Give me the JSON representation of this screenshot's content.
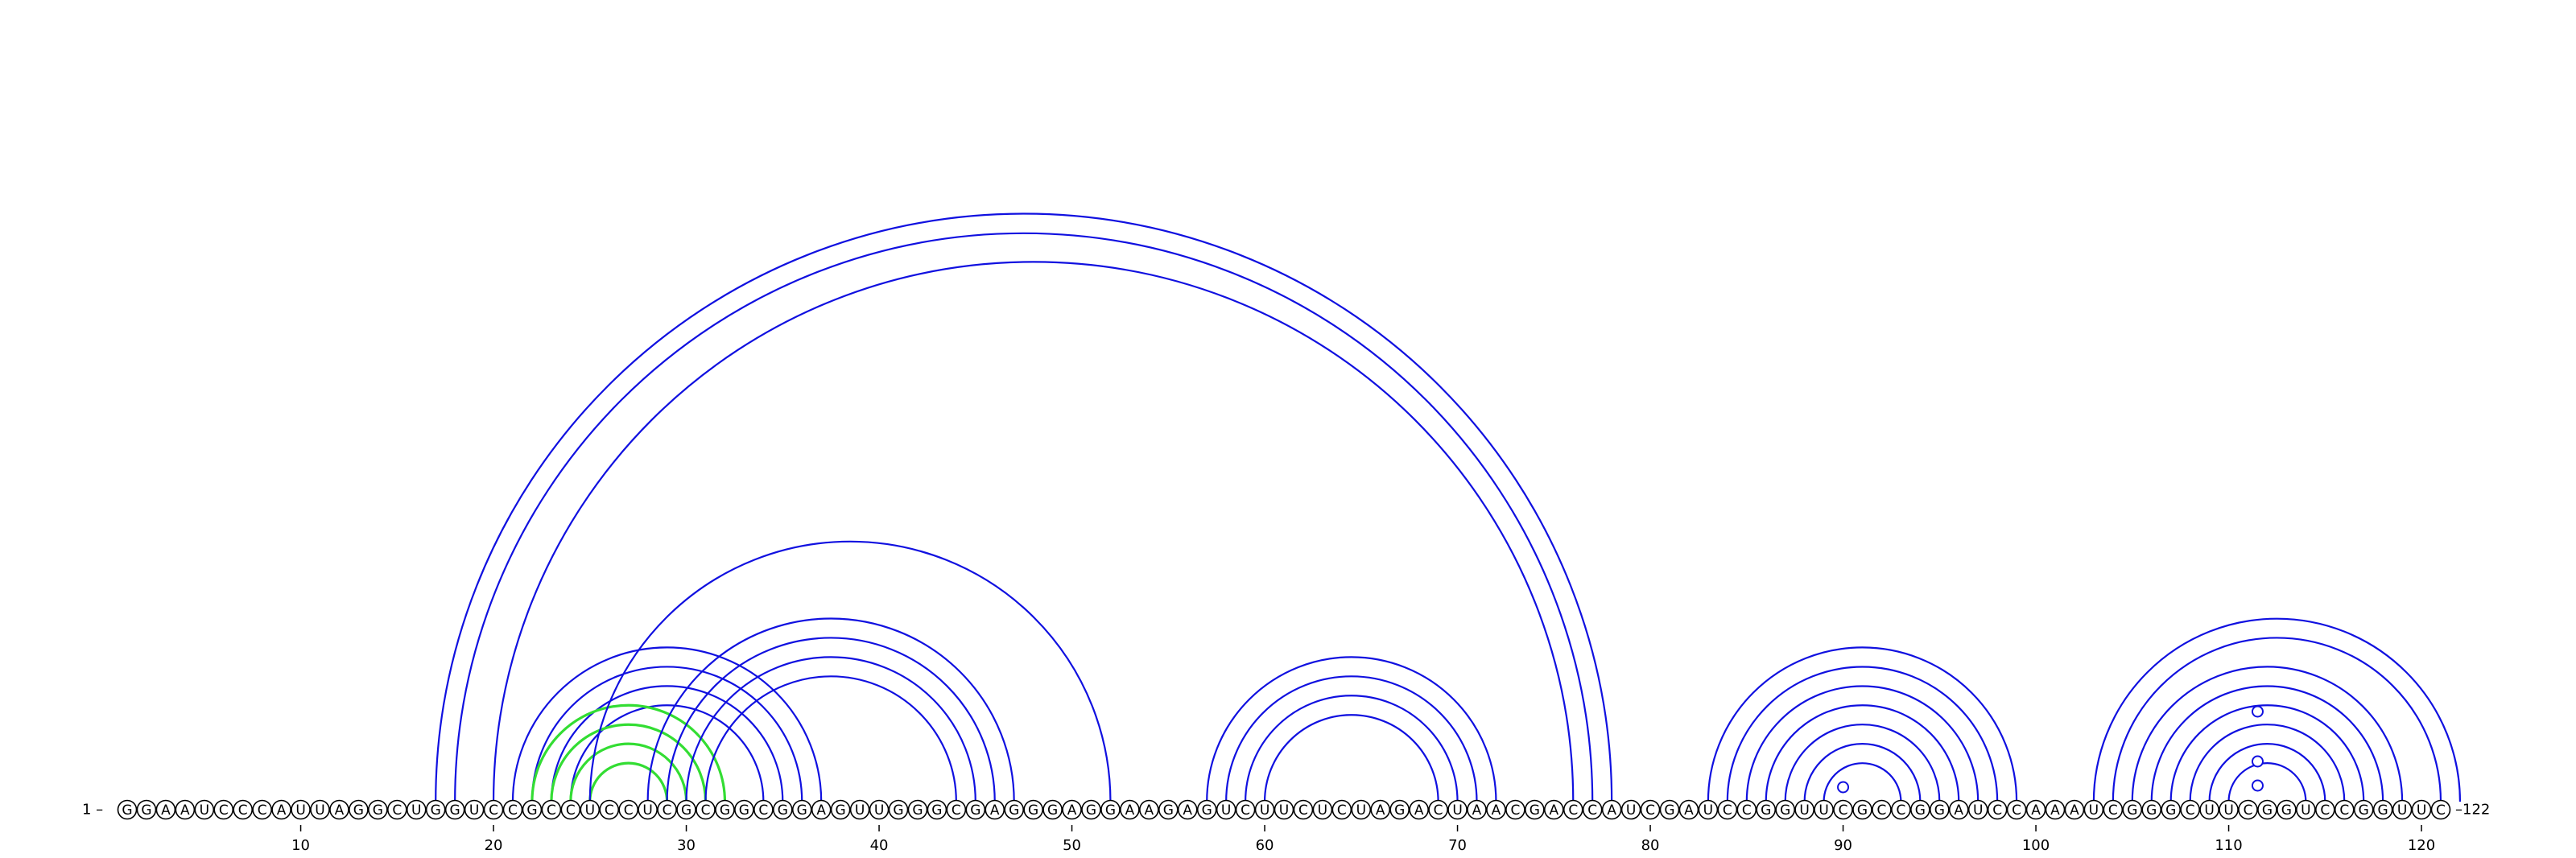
{
  "sequence": "GGAAUCCCAUUAGGCUGGUCCGCCUCCUCGCGGCGGAGUUGGGCGAGGGAGGAAGAGUCUUCUCUAGACUAACGACCAUCGAUCCGGUUCGCCGGAUCCAAAUCGGGCUUCGGUCCGGUUC",
  "labels": {
    "start": "1 –",
    "end": "–122"
  },
  "ticks": [
    "10",
    "20",
    "30",
    "40",
    "50",
    "60",
    "70",
    "80",
    "90",
    "100",
    "110",
    "120"
  ],
  "colors": {
    "pair": "#1010e0",
    "alt_pair": "#33dd33",
    "outline": "#000000"
  },
  "arc_groups": [
    {
      "color": "blue",
      "pairs": [
        [
          17,
          78
        ],
        [
          18,
          77
        ],
        [
          20,
          76
        ]
      ]
    },
    {
      "color": "blue",
      "pairs": [
        [
          21,
          37
        ],
        [
          22,
          36
        ],
        [
          23,
          35
        ],
        [
          24,
          34
        ]
      ]
    },
    {
      "color": "green",
      "pairs": [
        [
          22,
          32
        ],
        [
          23,
          31
        ],
        [
          24,
          30
        ],
        [
          25,
          29
        ]
      ]
    },
    {
      "color": "blue",
      "pairs": [
        [
          25,
          52
        ],
        [
          28,
          47
        ],
        [
          29,
          46
        ],
        [
          30,
          45
        ],
        [
          31,
          44
        ]
      ]
    },
    {
      "color": "blue",
      "pairs": [
        [
          57,
          72
        ],
        [
          58,
          71
        ],
        [
          59,
          70
        ],
        [
          60,
          69
        ]
      ]
    },
    {
      "color": "blue",
      "pairs": [
        [
          83,
          99
        ],
        [
          84,
          98
        ],
        [
          85,
          97
        ],
        [
          86,
          96
        ],
        [
          87,
          95
        ],
        [
          88,
          94
        ],
        [
          89,
          93
        ]
      ]
    },
    {
      "color": "blue",
      "pairs": [
        [
          103,
          122
        ],
        [
          104,
          121
        ],
        [
          105,
          119
        ],
        [
          106,
          118
        ],
        [
          107,
          117
        ],
        [
          108,
          116
        ],
        [
          109,
          115
        ],
        [
          110,
          114
        ]
      ]
    }
  ],
  "markers": [
    90,
    111.5
  ]
}
